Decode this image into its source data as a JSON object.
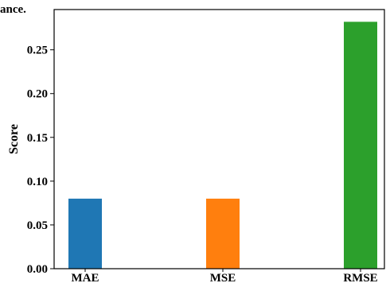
{
  "header": {
    "corner_text": "ance."
  },
  "chart_data": {
    "type": "bar",
    "categories": [
      "MAE",
      "MSE",
      "RMSE"
    ],
    "values": [
      0.08,
      0.08,
      0.282
    ],
    "colors": [
      "#1f77b4",
      "#ff7f0e",
      "#2ca02c"
    ],
    "title": "",
    "xlabel": "",
    "ylabel": "Score",
    "ylim": [
      0.0,
      0.296
    ],
    "yticks": [
      0.0,
      0.05,
      0.1,
      0.15,
      0.2,
      0.25
    ],
    "ytick_labels": [
      "0.00",
      "0.05",
      "0.10",
      "0.15",
      "0.20",
      "0.25"
    ],
    "grid": false,
    "legend": "none"
  }
}
